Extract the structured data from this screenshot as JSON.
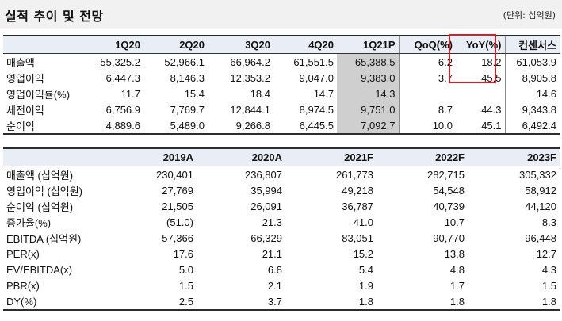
{
  "header": {
    "title": "실적 추이 및 전망",
    "unit": "(단위: 십억원)"
  },
  "quarterly": {
    "columns": [
      "",
      "1Q20",
      "2Q20",
      "3Q20",
      "4Q20",
      "1Q21P",
      "QoQ(%)",
      "YoY(%)",
      "컨센서스"
    ],
    "rows": [
      [
        "매출액",
        "55,325.2",
        "52,966.1",
        "66,964.2",
        "61,551.5",
        "65,388.5",
        "6.2",
        "18.2",
        "61,053.9"
      ],
      [
        "영업이익",
        "6,447.3",
        "8,146.3",
        "12,353.2",
        "9,047.0",
        "9,383.0",
        "3.7",
        "45.5",
        "8,905.8"
      ],
      [
        "영업이익률(%)",
        "11.7",
        "15.4",
        "18.4",
        "14.7",
        "14.3",
        "",
        "",
        "14.6"
      ],
      [
        "세전이익",
        "6,756.9",
        "7,769.7",
        "12,844.1",
        "8,974.5",
        "9,751.0",
        "8.7",
        "44.3",
        "9,343.8"
      ],
      [
        "순이익",
        "4,889.6",
        "5,489.0",
        "9,266.8",
        "6,445.5",
        "7,092.7",
        "10.0",
        "45.1",
        "6,492.4"
      ]
    ]
  },
  "annual": {
    "columns": [
      "",
      "2019A",
      "2020A",
      "2021F",
      "2022F",
      "2023F"
    ],
    "rows": [
      [
        "매출액 (십억원)",
        "230,401",
        "236,807",
        "261,773",
        "282,715",
        "305,332"
      ],
      [
        "영업이익 (십억원)",
        "27,769",
        "35,994",
        "49,218",
        "54,548",
        "58,912"
      ],
      [
        "순이익 (십억원)",
        "21,505",
        "26,091",
        "36,787",
        "40,739",
        "44,120"
      ],
      [
        "증가율(%)",
        "(51.0)",
        "21.3",
        "41.0",
        "10.7",
        "8.3"
      ],
      [
        "EBITDA (십억원)",
        "57,366",
        "66,329",
        "83,051",
        "90,770",
        "96,448"
      ],
      [
        "PER(x)",
        "17.6",
        "21.1",
        "15.2",
        "13.8",
        "12.7"
      ],
      [
        "EV/EBITDA(x)",
        "5.0",
        "6.8",
        "5.4",
        "4.8",
        "4.3"
      ],
      [
        "PBR(x)",
        "1.5",
        "2.1",
        "1.9",
        "1.7",
        "1.5"
      ],
      [
        "DY(%)",
        "2.5",
        "3.7",
        "1.8",
        "1.8",
        "1.8"
      ]
    ]
  },
  "colors": {
    "header_bg": "#e8edf6",
    "highlight_column": "#cfcfcf",
    "annotation_box": "#d4202a"
  }
}
